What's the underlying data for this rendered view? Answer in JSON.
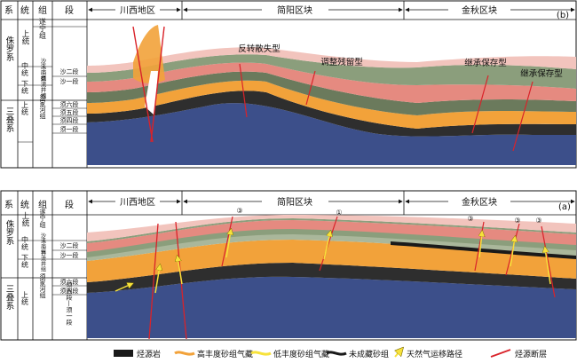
{
  "panel_b": {
    "id": "(b)",
    "regions": [
      "川西地区",
      "简阳区块",
      "金秋区块"
    ],
    "column_headers": [
      "系",
      "统",
      "组",
      "段"
    ],
    "system_jurassic": "侏罗系",
    "system_triassic": "三叠系",
    "series_upper_j": "上统",
    "series_middle_j": "中统",
    "series_lower_j": "下统",
    "series_upper_t": "上统",
    "fm_suining": "遂宁组",
    "fm_shaximiao": "沙溪庙组",
    "fm_ziliujing": "自流井组",
    "fm_xujiahe": "须家河组",
    "mb_sha2": "沙二段",
    "mb_sha1": "沙一段",
    "mb_xu6": "须六段",
    "mb_xu5": "须五段",
    "mb_xu4": "须四段",
    "mb_xu1": "须一段",
    "annotations": [
      "反转散失型",
      "调整残留型",
      "继承保存型",
      "继承保存型"
    ]
  },
  "panel_a": {
    "id": "(a)",
    "regions": [
      "川西地区",
      "简阳区块",
      "金秋区块"
    ],
    "column_headers": [
      "系",
      "统",
      "组",
      "段"
    ],
    "system_jurassic": "侏罗系",
    "system_triassic": "三叠系",
    "series_upper_j": "上统",
    "series_middle_j": "中统",
    "series_lower_j": "下统",
    "series_upper_t": "上统",
    "fm_suining": "遂宁组",
    "fm_shaximiao": "沙溪庙组",
    "fm_ziliujing": "自流井组",
    "fm_xujiahe": "须家河组",
    "mb_sha2": "沙二段",
    "mb_sha1": "沙一段",
    "mb_xu6": "须六段",
    "mb_xu5": "须五段",
    "mb_xu4_1": "须四段—须一段",
    "markers": [
      "③",
      "①",
      "③",
      "③",
      "③"
    ]
  },
  "legend": {
    "items": [
      "烃源岩",
      "高丰度砂组气藏",
      "低丰度砂组气藏",
      "未成藏砂组",
      "天然气运移路径",
      "烃源断层"
    ]
  },
  "colors": {
    "pink": "#f2c4bd",
    "red_band": "#e58a80",
    "green": "#8b9e7c",
    "light_green": "#aab79b",
    "orange": "#f2a23a",
    "dark": "#2e2e2e",
    "blue": "#3c4f8a",
    "fault": "#d9232a",
    "migration": "#f7e23b"
  }
}
